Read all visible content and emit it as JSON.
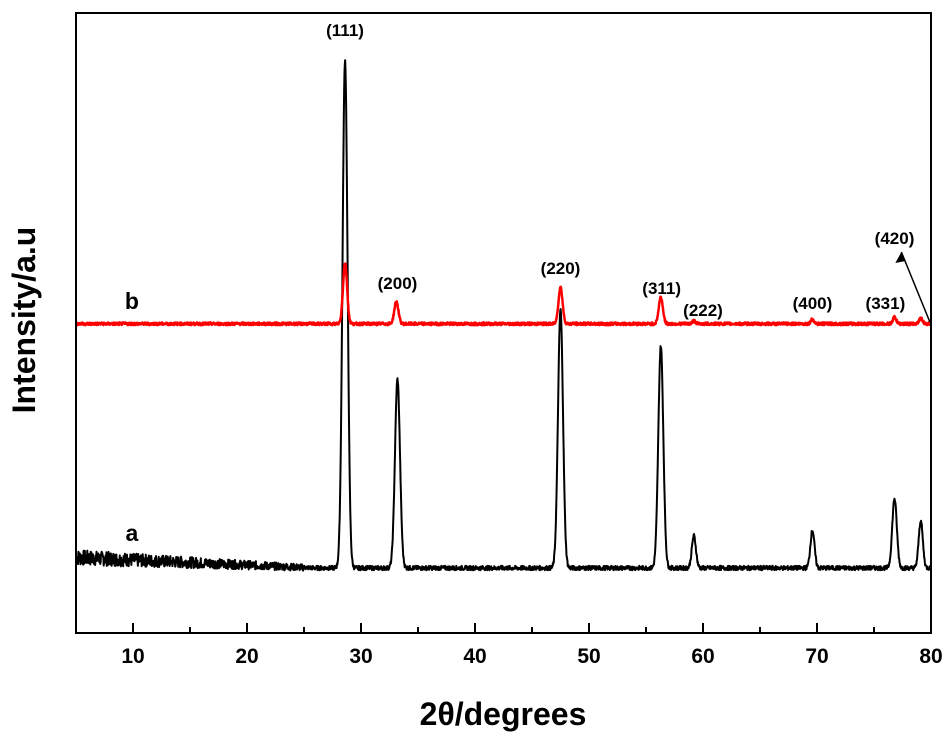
{
  "chart_data": {
    "type": "line",
    "title": "",
    "xlabel": "2θ/degrees",
    "ylabel": "Intensity/a.u",
    "xlim": [
      5,
      80
    ],
    "x_ticks": [
      10,
      20,
      30,
      40,
      50,
      60,
      70,
      80
    ],
    "y_tick_labels": false,
    "grid": false,
    "legend": "none",
    "series": [
      {
        "name": "a",
        "color": "#000000",
        "baseline": 0.0,
        "peaks": [
          {
            "x": 28.6,
            "height": 0.915,
            "width": 0.22
          },
          {
            "x": 33.2,
            "height": 0.34,
            "width": 0.22
          },
          {
            "x": 47.5,
            "height": 0.465,
            "width": 0.22
          },
          {
            "x": 56.3,
            "height": 0.4,
            "width": 0.22
          },
          {
            "x": 59.2,
            "height": 0.058,
            "width": 0.18
          },
          {
            "x": 69.6,
            "height": 0.068,
            "width": 0.18
          },
          {
            "x": 76.8,
            "height": 0.125,
            "width": 0.2
          },
          {
            "x": 79.1,
            "height": 0.085,
            "width": 0.18
          }
        ]
      },
      {
        "name": "b",
        "color": "#ff0000",
        "baseline": 0.44,
        "peaks": [
          {
            "x": 28.6,
            "height": 0.11,
            "width": 0.18
          },
          {
            "x": 33.1,
            "height": 0.04,
            "width": 0.18
          },
          {
            "x": 47.5,
            "height": 0.066,
            "width": 0.18
          },
          {
            "x": 56.3,
            "height": 0.048,
            "width": 0.18
          },
          {
            "x": 59.2,
            "height": 0.005,
            "width": 0.15
          },
          {
            "x": 69.6,
            "height": 0.008,
            "width": 0.15
          },
          {
            "x": 76.8,
            "height": 0.012,
            "width": 0.15
          },
          {
            "x": 79.1,
            "height": 0.01,
            "width": 0.15
          }
        ]
      }
    ],
    "series_labels": [
      "a",
      "b"
    ],
    "peak_labels": [
      {
        "text": "(111)",
        "x": 28.6
      },
      {
        "text": "(200)",
        "x": 33.2
      },
      {
        "text": "(220)",
        "x": 47.5
      },
      {
        "text": "(311)",
        "x": 56.2
      },
      {
        "text": "(222)",
        "x": 60.0
      },
      {
        "text": "(400)",
        "x": 69.6
      },
      {
        "text": "(331)",
        "x": 76.0
      },
      {
        "text": "(420)",
        "x": 76.8
      }
    ]
  }
}
